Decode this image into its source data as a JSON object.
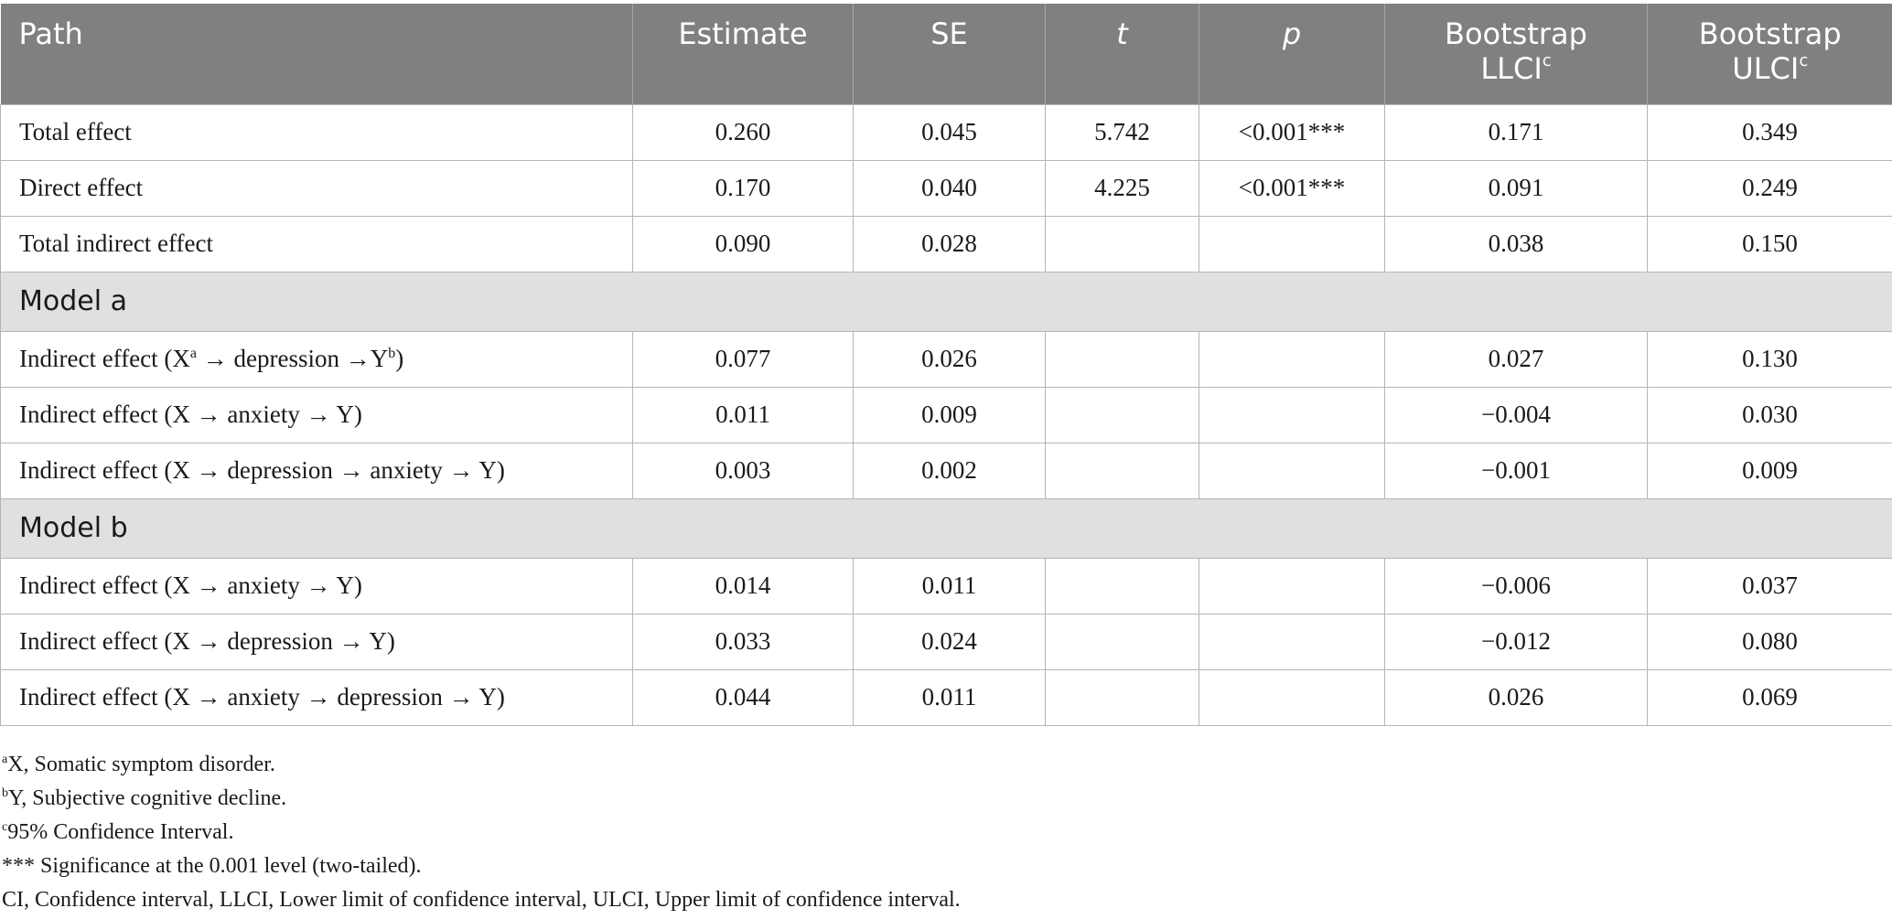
{
  "table": {
    "headers": {
      "path": "Path",
      "estimate": "Estimate",
      "se": "SE",
      "t": "t",
      "p": "p",
      "llci_line1": "Bootstrap",
      "llci_line2": "LLCI",
      "llci_sup": "c",
      "ulci_line1": "Bootstrap",
      "ulci_line2": "ULCI",
      "ulci_sup": "c"
    },
    "rows": [
      {
        "path": "Total effect",
        "estimate": "0.260",
        "se": "0.045",
        "t": "5.742",
        "p": "<0.001***",
        "llci": "0.171",
        "ulci": "0.349"
      },
      {
        "path": "Direct effect",
        "estimate": "0.170",
        "se": "0.040",
        "t": "4.225",
        "p": "<0.001***",
        "llci": "0.091",
        "ulci": "0.249"
      },
      {
        "path": "Total indirect effect",
        "estimate": "0.090",
        "se": "0.028",
        "t": "",
        "p": "",
        "llci": "0.038",
        "ulci": "0.150"
      },
      {
        "section": "Model a"
      },
      {
        "path_pre": "Indirect effect (X",
        "path_sup1": "a",
        "path_mid": " → depression →Y",
        "path_sup2": "b",
        "path_post": ")",
        "estimate": "0.077",
        "se": "0.026",
        "t": "",
        "p": "",
        "llci": "0.027",
        "ulci": "0.130"
      },
      {
        "path": "Indirect effect (X → anxiety → Y)",
        "estimate": "0.011",
        "se": "0.009",
        "t": "",
        "p": "",
        "llci": "−0.004",
        "ulci": "0.030"
      },
      {
        "path": "Indirect effect (X → depression → anxiety → Y)",
        "estimate": "0.003",
        "se": "0.002",
        "t": "",
        "p": "",
        "llci": "−0.001",
        "ulci": "0.009"
      },
      {
        "section": "Model b"
      },
      {
        "path": "Indirect effect (X → anxiety → Y)",
        "estimate": "0.014",
        "se": "0.011",
        "t": "",
        "p": "",
        "llci": "−0.006",
        "ulci": "0.037"
      },
      {
        "path": "Indirect effect (X → depression → Y)",
        "estimate": "0.033",
        "se": "0.024",
        "t": "",
        "p": "",
        "llci": "−0.012",
        "ulci": "0.080"
      },
      {
        "path": "Indirect effect (X → anxiety → depression → Y)",
        "estimate": "0.044",
        "se": "0.011",
        "t": "",
        "p": "",
        "llci": "0.026",
        "ulci": "0.069"
      }
    ]
  },
  "footnotes": [
    {
      "sup": "a",
      "text": "X, Somatic symptom disorder."
    },
    {
      "sup": "b",
      "text": "Y, Subjective cognitive decline."
    },
    {
      "sup": "c",
      "text": "95% Confidence Interval."
    },
    {
      "sup": "",
      "text": "*** Significance at the 0.001 level (two-tailed)."
    },
    {
      "sup": "",
      "text": "CI, Confidence interval, LLCI, Lower limit of confidence interval, ULCI, Upper limit of confidence interval."
    }
  ]
}
